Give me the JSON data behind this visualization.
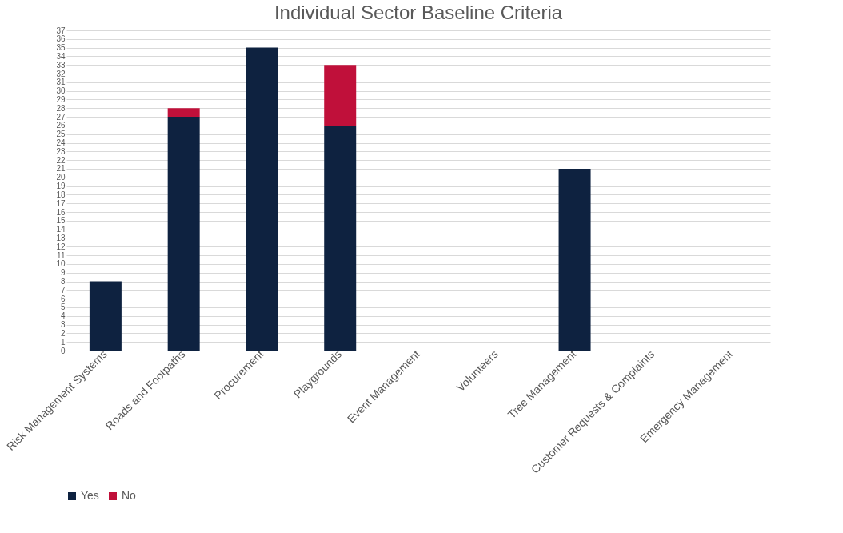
{
  "chart_data": {
    "type": "bar",
    "title": "Individual Sector Baseline Criteria",
    "categories": [
      "Risk Management Systems",
      "Roads and Footpaths",
      "Procurement",
      "Playgrounds",
      "Event Management",
      "Volunteers",
      "Tree Management",
      "Customer Requests & Complaints",
      "Emergency Management"
    ],
    "series": [
      {
        "name": "Yes",
        "color": "#0e2240",
        "values": [
          8,
          27,
          35,
          26,
          0,
          0,
          21,
          0,
          0
        ]
      },
      {
        "name": "No",
        "color": "#c0103a",
        "values": [
          0,
          1,
          0,
          7,
          0,
          0,
          0,
          0,
          0
        ]
      }
    ],
    "stacked": true,
    "ylim": [
      0,
      37
    ],
    "yticks": [
      0,
      1,
      2,
      3,
      4,
      5,
      6,
      7,
      8,
      9,
      10,
      11,
      12,
      13,
      14,
      15,
      16,
      17,
      18,
      19,
      20,
      21,
      22,
      23,
      24,
      25,
      26,
      27,
      28,
      29,
      30,
      31,
      32,
      33,
      34,
      35,
      36,
      37
    ],
    "grid": "y",
    "legend": "bottom"
  }
}
